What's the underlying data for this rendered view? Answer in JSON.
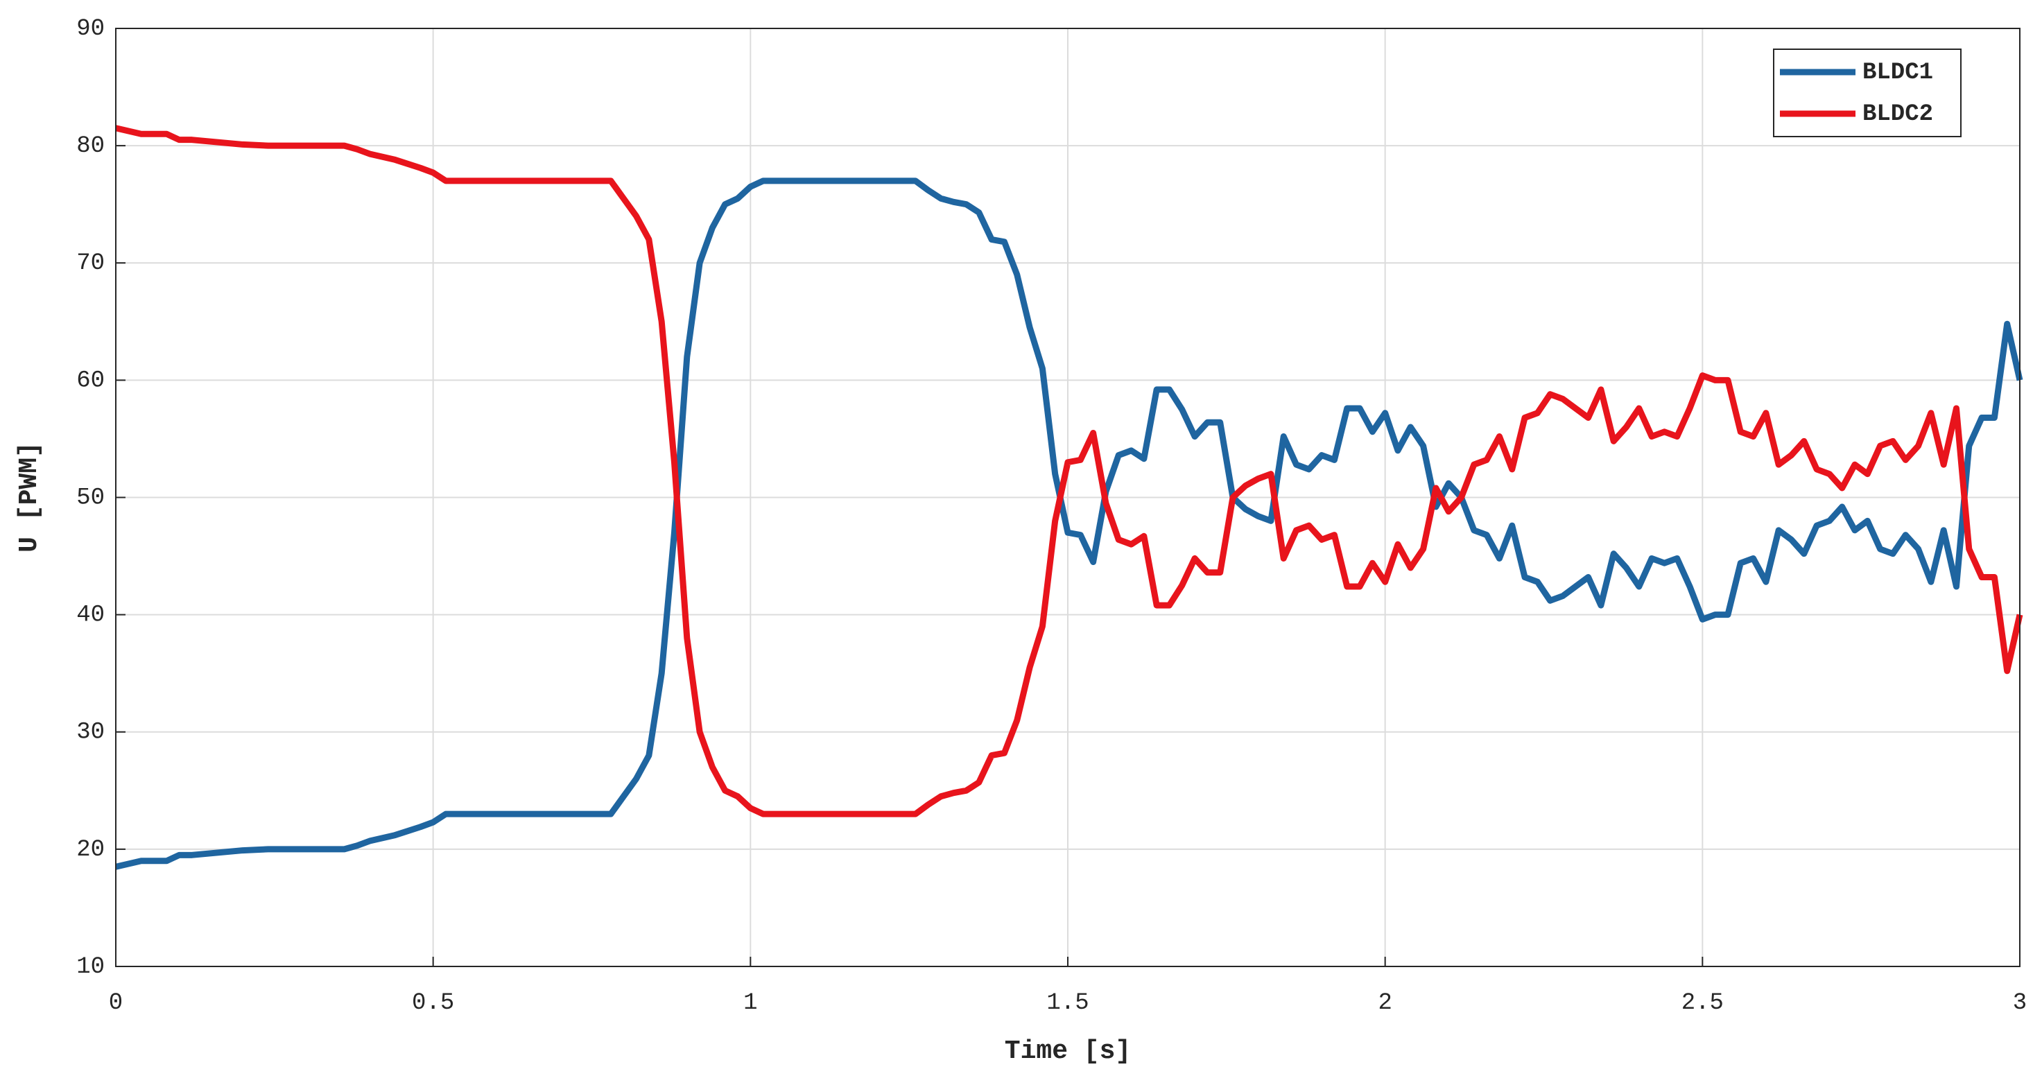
{
  "chart_data": {
    "type": "line",
    "xlabel": "Time [s]",
    "ylabel": "U [PWM]",
    "x": [
      0,
      0.04,
      0.08,
      0.1,
      0.12,
      0.16,
      0.2,
      0.24,
      0.3,
      0.36,
      0.38,
      0.4,
      0.44,
      0.48,
      0.5,
      0.52,
      0.6,
      0.7,
      0.78,
      0.8,
      0.82,
      0.84,
      0.86,
      0.88,
      0.9,
      0.92,
      0.94,
      0.96,
      0.98,
      1.0,
      1.02,
      1.1,
      1.2,
      1.26,
      1.28,
      1.3,
      1.32,
      1.34,
      1.36,
      1.38,
      1.4,
      1.42,
      1.44,
      1.46,
      1.48,
      1.5,
      1.52,
      1.54,
      1.56,
      1.58,
      1.6,
      1.62,
      1.64,
      1.66,
      1.68,
      1.7,
      1.72,
      1.74,
      1.76,
      1.78,
      1.8,
      1.82,
      1.84,
      1.86,
      1.88,
      1.9,
      1.92,
      1.94,
      1.96,
      1.98,
      2.0,
      2.02,
      2.04,
      2.06,
      2.08,
      2.1,
      2.12,
      2.14,
      2.16,
      2.18,
      2.2,
      2.22,
      2.24,
      2.26,
      2.28,
      2.3,
      2.32,
      2.34,
      2.36,
      2.38,
      2.4,
      2.42,
      2.44,
      2.46,
      2.48,
      2.5,
      2.52,
      2.54,
      2.56,
      2.58,
      2.6,
      2.62,
      2.64,
      2.66,
      2.68,
      2.7,
      2.72,
      2.74,
      2.76,
      2.78,
      2.8,
      2.82,
      2.84,
      2.86,
      2.88,
      2.9,
      2.92,
      2.94,
      2.96,
      2.98,
      3.0
    ],
    "series": [
      {
        "name": "BLDC1",
        "color": "#1f65a0",
        "values": [
          18.5,
          19,
          19,
          19.5,
          19.5,
          19.7,
          19.9,
          20,
          20,
          20,
          20.3,
          20.7,
          21.2,
          21.9,
          22.3,
          23,
          23,
          23,
          23,
          24.5,
          26,
          28,
          35,
          47,
          62,
          70,
          73,
          75,
          75.5,
          76.5,
          77,
          77,
          77,
          77,
          76.2,
          75.5,
          75.2,
          75,
          74.3,
          72,
          71.8,
          69,
          64.5,
          61,
          52,
          47,
          46.8,
          44.5,
          50.5,
          53.6,
          54,
          53.3,
          59.2,
          59.2,
          57.5,
          55.2,
          56.4,
          56.4,
          50,
          49,
          48.4,
          48,
          55.2,
          52.8,
          52.4,
          53.6,
          53.2,
          57.6,
          57.6,
          55.6,
          57.2,
          54,
          56,
          54.4,
          49.2,
          51.2,
          50,
          47.2,
          46.8,
          44.8,
          47.6,
          43.2,
          42.8,
          41.2,
          41.6,
          42.4,
          43.2,
          40.8,
          45.2,
          44,
          42.4,
          44.8,
          44.4,
          44.8,
          42.4,
          39.6,
          40,
          40,
          44.4,
          44.8,
          42.8,
          47.2,
          46.4,
          45.2,
          47.6,
          48,
          49.2,
          47.2,
          48,
          45.6,
          45.2,
          46.8,
          45.6,
          42.8,
          47.2,
          42.4,
          54.4,
          56.8,
          56.8,
          64.8,
          60
        ]
      },
      {
        "name": "BLDC2",
        "color": "#e8141c",
        "values": [
          81.5,
          81,
          81,
          80.5,
          80.5,
          80.3,
          80.1,
          80,
          80,
          80,
          79.7,
          79.3,
          78.8,
          78.1,
          77.7,
          77,
          77,
          77,
          77,
          75.5,
          74,
          72,
          65,
          53,
          38,
          30,
          27,
          25,
          24.5,
          23.5,
          23,
          23,
          23,
          23,
          23.8,
          24.5,
          24.8,
          25,
          25.7,
          28,
          28.2,
          31,
          35.5,
          39,
          48,
          53,
          53.2,
          55.5,
          49.5,
          46.4,
          46,
          46.7,
          40.8,
          40.8,
          42.5,
          44.8,
          43.6,
          43.6,
          50,
          51,
          51.6,
          52,
          44.8,
          47.2,
          47.6,
          46.4,
          46.8,
          42.4,
          42.4,
          44.4,
          42.8,
          46,
          44,
          45.6,
          50.8,
          48.8,
          50,
          52.8,
          53.2,
          55.2,
          52.4,
          56.8,
          57.2,
          58.8,
          58.4,
          57.6,
          56.8,
          59.2,
          54.8,
          56,
          57.6,
          55.2,
          55.6,
          55.2,
          57.6,
          60.4,
          60,
          60,
          55.6,
          55.2,
          57.2,
          52.8,
          53.6,
          54.8,
          52.4,
          52,
          50.8,
          52.8,
          52,
          54.4,
          54.8,
          53.2,
          54.4,
          57.2,
          52.8,
          57.6,
          45.6,
          43.2,
          43.2,
          35.2,
          40
        ]
      }
    ],
    "xlim": [
      0,
      3
    ],
    "xticks": [
      0,
      0.5,
      1,
      1.5,
      2,
      2.5,
      3
    ],
    "ylim": [
      10,
      90
    ],
    "yticks": [
      10,
      20,
      30,
      40,
      50,
      60,
      70,
      80,
      90
    ],
    "grid": true,
    "legend": "upper right"
  }
}
